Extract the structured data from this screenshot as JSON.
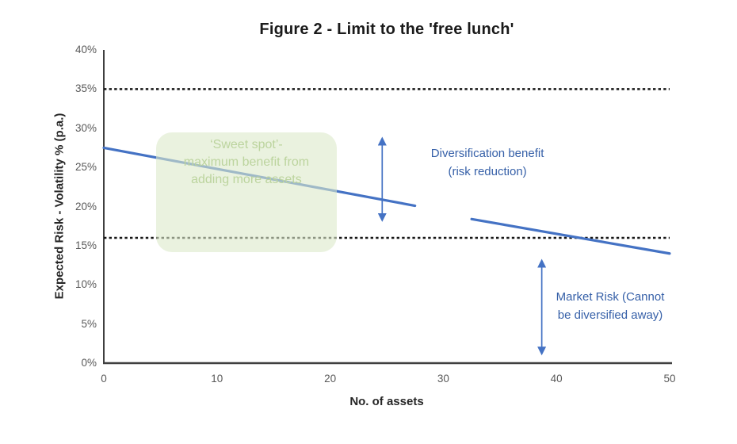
{
  "colors": {
    "series_line": "#4472C4",
    "arrow": "#4472C4",
    "annotation_text": "#3660A8",
    "dotted_line": "#161616",
    "axis_line": "#3F3F3F",
    "tick_label": "#595959",
    "title_text": "#1A1A1A",
    "sweet_spot_fill_rgba": "rgba(220,233,201,0.6)",
    "sweet_spot_text": "#BCD49E"
  },
  "chart_data": {
    "type": "line",
    "title": "Figure 2 - Limit to the 'free lunch'",
    "xlabel": "No. of assets",
    "ylabel": "Expected Risk - Volatility % (p.a.)",
    "xlim": [
      0,
      50
    ],
    "ylim": [
      0,
      40
    ],
    "grid": false,
    "legend": "none",
    "x_ticks": [
      {
        "value": 0,
        "label": "0"
      },
      {
        "value": 10,
        "label": "10"
      },
      {
        "value": 20,
        "label": "20"
      },
      {
        "value": 30,
        "label": "30"
      },
      {
        "value": 40,
        "label": "40"
      },
      {
        "value": 50,
        "label": "50"
      }
    ],
    "y_ticks": [
      {
        "value": 0,
        "label": "0%"
      },
      {
        "value": 5,
        "label": "5%"
      },
      {
        "value": 10,
        "label": "10%"
      },
      {
        "value": 15,
        "label": "15%"
      },
      {
        "value": 20,
        "label": "20%"
      },
      {
        "value": 25,
        "label": "25%"
      },
      {
        "value": 30,
        "label": "30%"
      },
      {
        "value": 35,
        "label": "35%"
      },
      {
        "value": 40,
        "label": "40%"
      }
    ],
    "series": [
      {
        "name": "risk-curve-segment-1",
        "x": [
          0,
          27.5
        ],
        "y": [
          27.5,
          20.1
        ]
      },
      {
        "name": "risk-curve-segment-2",
        "x": [
          32.5,
          50
        ],
        "y": [
          18.4,
          14.0
        ]
      }
    ],
    "reference_lines": [
      {
        "name": "upper-risk-line",
        "y": 35,
        "style": "dotted",
        "x0": 0,
        "x1": 50
      },
      {
        "name": "market-risk-floor",
        "y": 16,
        "style": "dotted",
        "x0": 0,
        "x1": 50
      }
    ],
    "annotations": {
      "sweet_spot": {
        "text_lines": [
          "‘Sweet spot’-",
          "maximum benefit from",
          "adding more assets"
        ],
        "x0": 4.6,
        "x1": 20.6,
        "y0": 14.2,
        "y1": 29.5
      },
      "diversification": {
        "lines": [
          "Diversification benefit",
          "(risk reduction)"
        ],
        "arrow_x": 24.6,
        "arrow_y0": 17.55,
        "arrow_y1": 29.4,
        "text_x": 33.9,
        "text_y": 25.6
      },
      "market_risk": {
        "lines": [
          "Market Risk (Cannot",
          "be diversified away)"
        ],
        "arrow_x": 38.7,
        "arrow_y0": 0.5,
        "arrow_y1": 13.8,
        "text_x": 44.75,
        "text_y": 7.25
      }
    }
  }
}
